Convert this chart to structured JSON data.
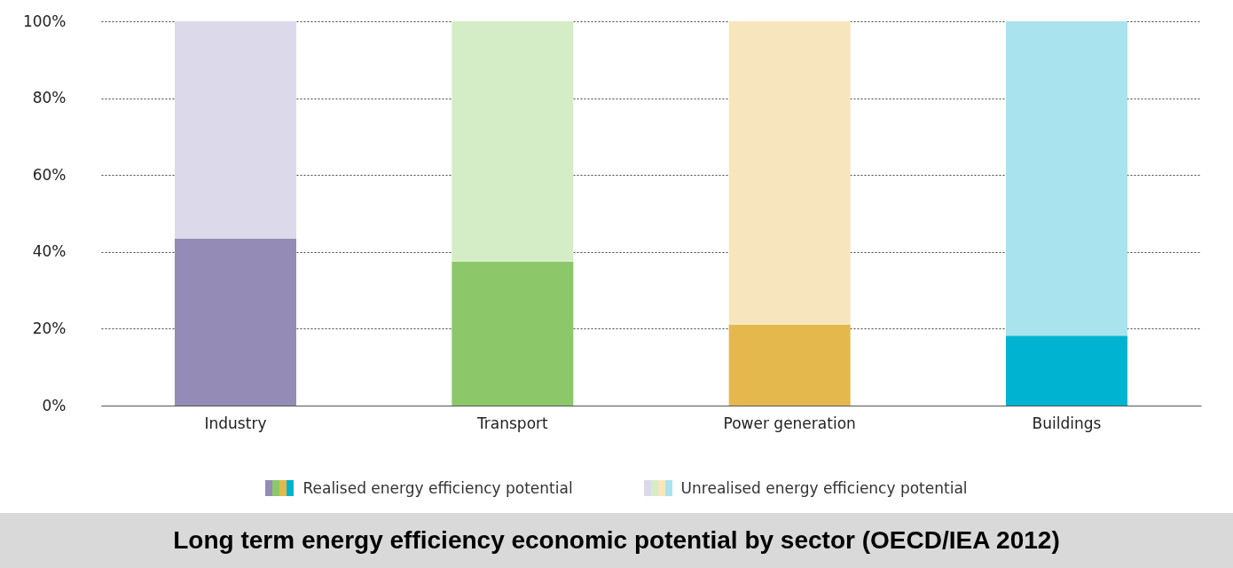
{
  "chart_data": {
    "type": "bar",
    "title": "Long term energy efficiency economic potential by sector (OECD/IEA 2012)",
    "categories": [
      "Industry",
      "Transport",
      "Power generation",
      "Buildings"
    ],
    "stacked": true,
    "series": [
      {
        "name": "Realised energy efficiency potential",
        "colors": [
          "#948cb6",
          "#8cc86a",
          "#e5b84e",
          "#00b3d1"
        ],
        "values": [
          43.4,
          37.4,
          21.0,
          18.2
        ]
      },
      {
        "name": "Unrealised energy efficiency potential",
        "colors": [
          "#dcd9ea",
          "#d5edc7",
          "#f7e6bd",
          "#a9e3ee"
        ],
        "values": [
          56.6,
          62.6,
          79.0,
          81.8
        ]
      }
    ],
    "ylim": [
      0,
      100
    ],
    "yticks": [
      {
        "value": 0,
        "label": "0%"
      },
      {
        "value": 20,
        "label": "20%"
      },
      {
        "value": 40,
        "label": "40%"
      },
      {
        "value": 60,
        "label": "60%"
      },
      {
        "value": 80,
        "label": "80%"
      },
      {
        "value": 100,
        "label": "100%"
      }
    ],
    "grid": "y",
    "legend": "bottom"
  }
}
